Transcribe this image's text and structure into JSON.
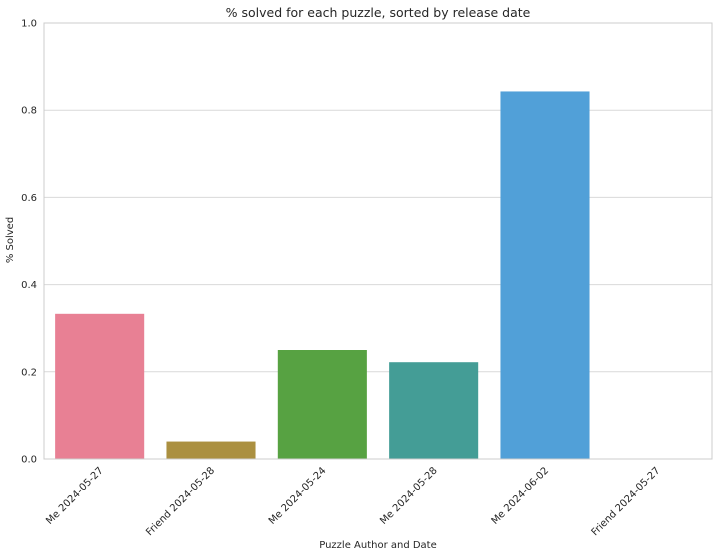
{
  "chart_data": {
    "type": "bar",
    "title": "% solved for each puzzle, sorted by release date",
    "xlabel": "Puzzle Author and Date",
    "ylabel": "% Solved",
    "ylim": [
      0,
      1
    ],
    "yticks": [
      "0.0",
      "0.2",
      "0.4",
      "0.6",
      "0.8",
      "1.0"
    ],
    "grid": true,
    "categories": [
      "Me 2024-05-27",
      "Friend 2024-05-28",
      "Me 2024-05-24",
      "Me 2024-05-28",
      "Me 2024-06-02",
      "Friend 2024-05-27"
    ],
    "values": [
      0.333,
      0.04,
      0.25,
      0.222,
      0.843,
      0.0
    ],
    "colors": [
      "#e88094",
      "#ab9040",
      "#57a242",
      "#449d96",
      "#51a0d8",
      "#b39cdf"
    ]
  }
}
